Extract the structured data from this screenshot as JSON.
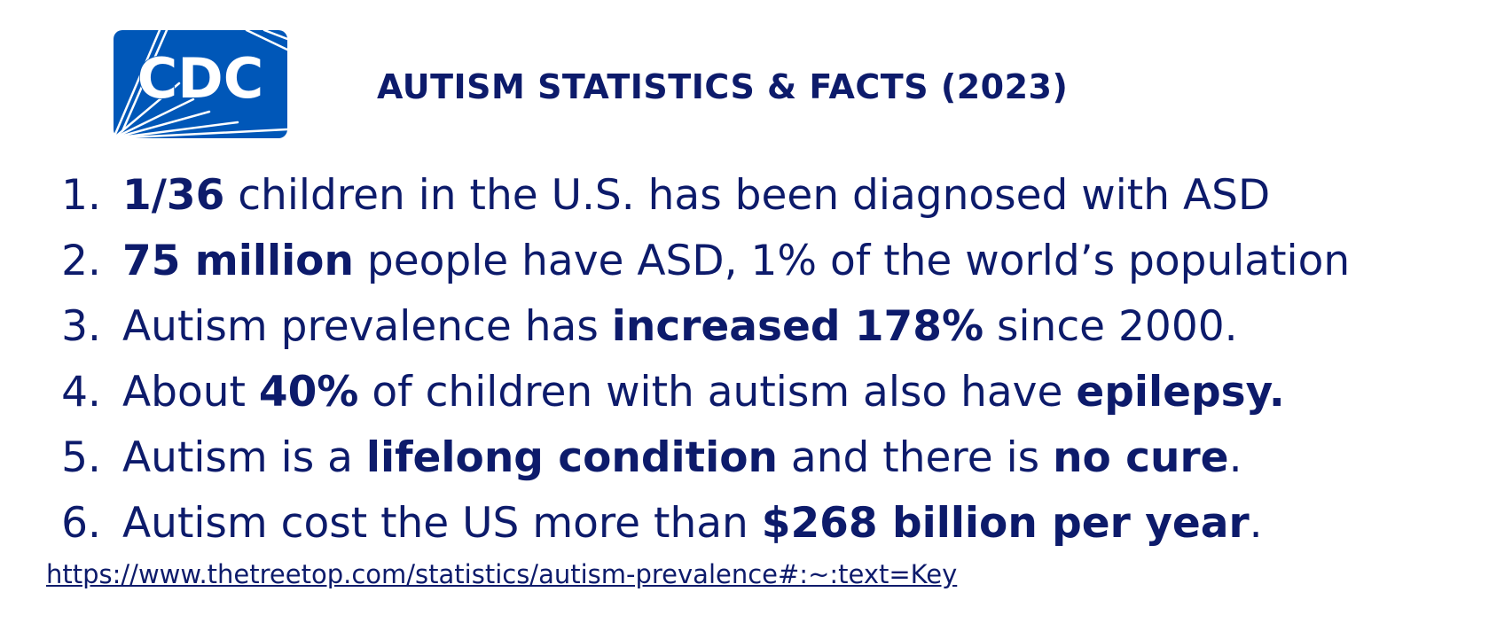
{
  "logo": {
    "text": "CDC",
    "color": "#0057b8"
  },
  "header": {
    "title": "AUTISM STATISTICS & FACTS (2023)"
  },
  "facts": [
    {
      "number": "1.",
      "parts": [
        {
          "text": "1/36",
          "bold": true
        },
        {
          "text": " children in the U.S. has been diagnosed with ASD",
          "bold": false
        }
      ]
    },
    {
      "number": "2.",
      "parts": [
        {
          "text": "75 million",
          "bold": true
        },
        {
          "text": " people have ASD, 1% of the world’s population",
          "bold": false
        }
      ]
    },
    {
      "number": "3.",
      "parts": [
        {
          "text": "Autism prevalence has ",
          "bold": false
        },
        {
          "text": "increased 178%",
          "bold": true
        },
        {
          "text": " since 2000.",
          "bold": false
        }
      ]
    },
    {
      "number": "4.",
      "parts": [
        {
          "text": "About ",
          "bold": false
        },
        {
          "text": "40%",
          "bold": true
        },
        {
          "text": " of children with autism also have ",
          "bold": false
        },
        {
          "text": "epilepsy.",
          "bold": true
        }
      ]
    },
    {
      "number": "5.",
      "parts": [
        {
          "text": "Autism is a ",
          "bold": false
        },
        {
          "text": "lifelong condition",
          "bold": true
        },
        {
          "text": " and there is ",
          "bold": false
        },
        {
          "text": "no cure",
          "bold": true
        },
        {
          "text": ".",
          "bold": false
        }
      ]
    },
    {
      "number": "6.",
      "parts": [
        {
          "text": "Autism cost the US more than ",
          "bold": false
        },
        {
          "text": "$268 billion per year",
          "bold": true
        },
        {
          "text": ".",
          "bold": false
        }
      ]
    }
  ],
  "source": {
    "link_text": "https://www.thetreetop.com/statistics/autism-prevalence#:~:text=Key"
  },
  "colors": {
    "text": "#0d1b6b",
    "logo_blue": "#0057b8"
  }
}
